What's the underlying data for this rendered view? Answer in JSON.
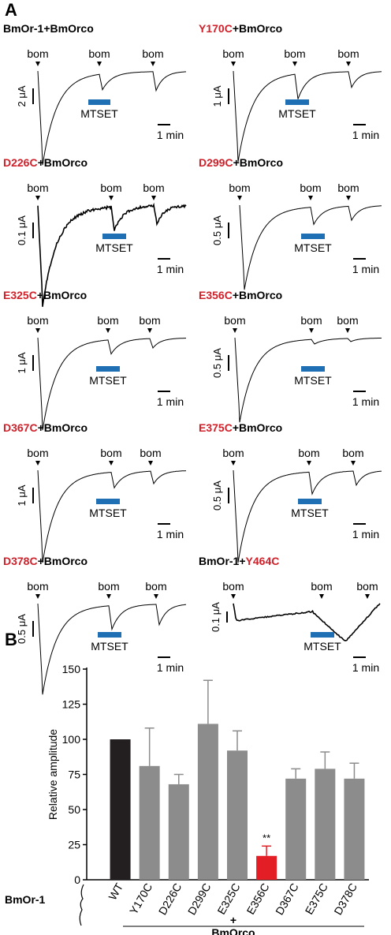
{
  "panel_a": {
    "letter": "A",
    "stimulus_label": "bom",
    "treatment_label": "MTSET",
    "time_scale_label": "1 min",
    "colors": {
      "mutation": "#d0202a",
      "mtset_bar": "#1f6fb5",
      "trace": "#000000"
    },
    "traces": [
      {
        "prefix": "",
        "mutation": "",
        "suffix": "BmOr-1+BmOrco",
        "scale_label": "2 μA"
      },
      {
        "prefix": "",
        "mutation": "Y170C",
        "suffix": "+BmOrco",
        "scale_label": "1 μA"
      },
      {
        "prefix": "",
        "mutation": "D226C",
        "suffix": "+BmOrco",
        "scale_label": "0.1 μA"
      },
      {
        "prefix": "",
        "mutation": "D299C",
        "suffix": "+BmOrco",
        "scale_label": "0.5 μA"
      },
      {
        "prefix": "",
        "mutation": "E325C",
        "suffix": "+BmOrco",
        "scale_label": "1 μA"
      },
      {
        "prefix": "",
        "mutation": "E356C",
        "suffix": "+BmOrco",
        "scale_label": "0.5 μA"
      },
      {
        "prefix": "",
        "mutation": "D367C",
        "suffix": "+BmOrco",
        "scale_label": "1 μA"
      },
      {
        "prefix": "",
        "mutation": "E375C",
        "suffix": "+BmOrco",
        "scale_label": "0.5 μA"
      },
      {
        "prefix": "",
        "mutation": "D378C",
        "suffix": "+BmOrco",
        "scale_label": "0.5 μA"
      },
      {
        "prefix": "BmOr-1+",
        "mutation": "Y464C",
        "suffix": "",
        "scale_label": "0.1 μA"
      }
    ]
  },
  "panel_b": {
    "letter": "B",
    "group_label": "BmOr-1",
    "bottom_label": "+\nBmOrco",
    "significance_mark": "**"
  },
  "chart_data": {
    "type": "bar",
    "categories": [
      "WT",
      "Y170C",
      "D226C",
      "D299C",
      "E325C",
      "E356C",
      "D367C",
      "E375C",
      "D378C"
    ],
    "values": [
      100,
      81,
      68,
      111,
      92,
      17,
      72,
      79,
      72
    ],
    "errors": [
      0,
      27,
      7,
      31,
      14,
      7,
      7,
      12,
      11
    ],
    "bar_colors": [
      "#231f20",
      "#8c8c8c",
      "#8c8c8c",
      "#8c8c8c",
      "#8c8c8c",
      "#e31e24",
      "#8c8c8c",
      "#8c8c8c",
      "#8c8c8c"
    ],
    "ylabel": "Relative amplitude",
    "ylim": [
      0,
      150
    ],
    "yticks": [
      0,
      25,
      50,
      75,
      100,
      125,
      150
    ],
    "significant_index": 5
  }
}
